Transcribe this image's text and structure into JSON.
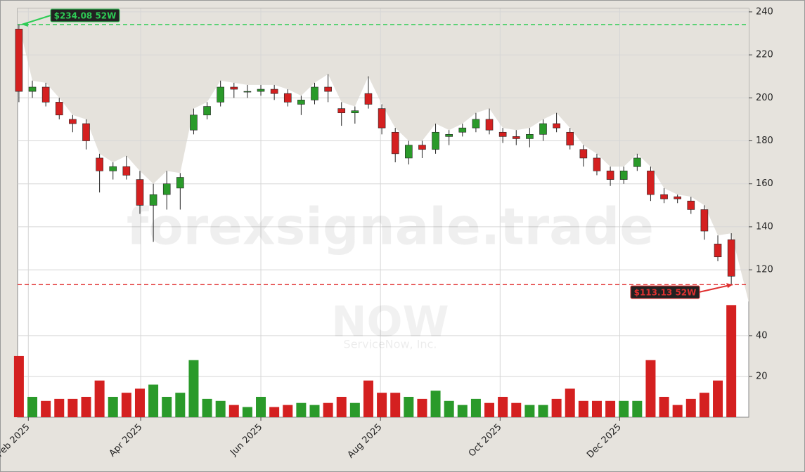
{
  "chart_data": {
    "type": "candlestick",
    "watermark": "forexsignale.trade",
    "symbol": "NOW",
    "company": "ServiceNow, Inc.",
    "x": [
      0,
      1,
      2,
      3,
      4,
      5,
      6,
      7,
      8,
      9,
      10,
      11,
      12,
      13,
      14,
      15,
      16,
      17,
      18,
      19,
      20,
      21,
      22,
      23,
      24,
      25,
      26,
      27,
      28,
      29,
      30,
      31,
      32,
      33,
      34,
      35,
      36,
      37,
      38,
      39,
      40,
      41,
      42,
      43,
      44,
      45,
      46,
      47,
      48,
      49,
      50,
      51,
      52,
      53
    ],
    "open": [
      232,
      203,
      205,
      198,
      190,
      188,
      172,
      166,
      168,
      162,
      150,
      155,
      158,
      185,
      192,
      198,
      205,
      203,
      203,
      204,
      202,
      197,
      199,
      205,
      195,
      193,
      202,
      195,
      184,
      172,
      178,
      176,
      182,
      184,
      186,
      190,
      184,
      182,
      181,
      183,
      188,
      184,
      176,
      172,
      166,
      162,
      168,
      166,
      155,
      154,
      152,
      148,
      132,
      134
    ],
    "high": [
      234.08,
      208,
      207,
      200,
      192,
      190,
      174,
      170,
      173,
      166,
      160,
      166,
      165,
      195,
      198,
      208,
      207,
      206,
      206,
      206,
      204,
      201,
      207,
      211,
      198,
      196,
      210,
      197,
      186,
      180,
      180,
      188,
      185,
      188,
      193,
      195,
      186,
      185,
      186,
      190,
      193,
      186,
      178,
      174,
      168,
      168,
      174,
      168,
      158,
      155,
      154,
      150,
      136,
      137
    ],
    "low": [
      198,
      200,
      196,
      190,
      184,
      176,
      156,
      162,
      162,
      146,
      133,
      148,
      148,
      183,
      190,
      196,
      200,
      200,
      201,
      199,
      196,
      192,
      197,
      198,
      187,
      188,
      195,
      183,
      170,
      169,
      172,
      174,
      178,
      182,
      184,
      183,
      179,
      178,
      177,
      180,
      184,
      176,
      168,
      164,
      159,
      160,
      166,
      152,
      151,
      151,
      146,
      134,
      124,
      113.13
    ],
    "close": [
      203,
      205,
      198,
      192,
      188,
      180,
      166,
      168,
      164,
      150,
      155,
      160,
      163,
      192,
      196,
      205,
      204,
      203,
      204,
      202,
      198,
      199,
      205,
      203,
      193,
      194,
      197,
      186,
      174,
      178,
      176,
      184,
      183,
      186,
      190,
      185,
      182,
      181,
      183,
      188,
      186,
      178,
      172,
      166,
      162,
      166,
      172,
      155,
      153,
      153,
      148,
      138,
      126,
      117
    ],
    "volume": [
      30,
      10,
      8,
      9,
      9,
      10,
      18,
      10,
      12,
      14,
      16,
      10,
      12,
      28,
      9,
      8,
      6,
      5,
      10,
      5,
      6,
      7,
      6,
      7,
      10,
      7,
      18,
      12,
      12,
      10,
      9,
      13,
      8,
      6,
      9,
      7,
      10,
      7,
      6,
      6,
      9,
      14,
      8,
      8,
      8,
      8,
      8,
      28,
      10,
      6,
      9,
      12,
      18,
      55
    ],
    "up_color": "#2a9a2a",
    "down_color": "#d42020",
    "xlim": [
      -0.1,
      54.3
    ],
    "xticks": [
      {
        "value": 0.7,
        "label": "Feb 2025"
      },
      {
        "value": 9.06,
        "label": "Apr 2025"
      },
      {
        "value": 18.0,
        "label": "Jun 2025"
      },
      {
        "value": 26.9,
        "label": "Aug 2025"
      },
      {
        "value": 35.8,
        "label": "Oct 2025"
      },
      {
        "value": 44.7,
        "label": "Dec 2025"
      }
    ],
    "ylim": [
      105,
      241.6
    ],
    "yticks": [
      120,
      140,
      160,
      180,
      200,
      220,
      240
    ],
    "volume_ylim": [
      0,
      56.5
    ],
    "volume_yticks": [
      20,
      40
    ],
    "grid": true,
    "annotations": [
      {
        "text": "$234.08 52W",
        "value": 234.08,
        "color": "#2ecc55"
      },
      {
        "text": "$113.13 52W",
        "value": 113.13,
        "color": "#e03030"
      }
    ]
  }
}
